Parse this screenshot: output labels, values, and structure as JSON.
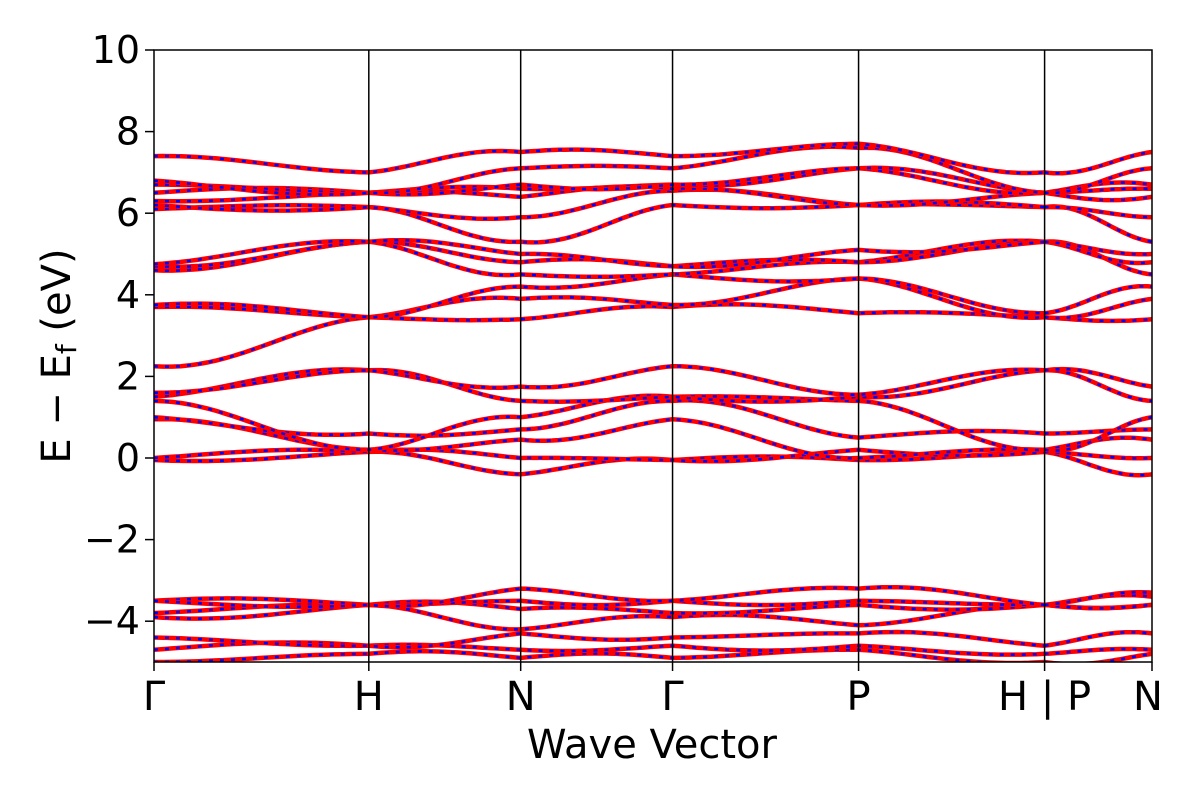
{
  "chart_data": {
    "type": "line",
    "xlabel": "Wave Vector",
    "ylabel_main": "E − E",
    "ylabel_sub": "f",
    "ylabel_unit": " (eV)",
    "ylim": [
      -5,
      10
    ],
    "yticks": [
      "−4",
      "−2",
      "0",
      "2",
      "4",
      "6",
      "8",
      "10"
    ],
    "ytick_values": [
      -4,
      -2,
      0,
      2,
      4,
      6,
      8,
      10
    ],
    "xticks": [
      "Γ",
      "H",
      "N",
      "Γ",
      "P",
      "H | P",
      "N"
    ],
    "xtick_positions": [
      0,
      1.0,
      1.707,
      2.414,
      3.28,
      4.146,
      4.646
    ],
    "segment_break_index": 5,
    "grid": false,
    "legend": "none",
    "colors": {
      "primary": "#ff0000",
      "secondary": "#0000ff",
      "axes": "#000000"
    },
    "bands_below": [
      [
        -5.0,
        -4.8,
        -4.9,
        -4.9,
        -4.7,
        -5.0,
        -4.8
      ],
      [
        -4.7,
        -4.6,
        -4.7,
        -4.6,
        -4.6,
        -4.8,
        -4.7
      ],
      [
        -4.4,
        -4.6,
        -4.3,
        -4.4,
        -4.3,
        -4.6,
        -4.3
      ],
      [
        -3.9,
        -3.6,
        -4.2,
        -3.9,
        -4.1,
        -3.6,
        -3.6
      ],
      [
        -3.8,
        -3.6,
        -3.7,
        -3.8,
        -3.6,
        -3.6,
        -3.6
      ],
      [
        -3.5,
        -3.6,
        -3.5,
        -3.5,
        -3.5,
        -3.6,
        -3.4
      ],
      [
        -3.5,
        -3.6,
        -3.2,
        -3.5,
        -3.2,
        -3.6,
        -3.3
      ]
    ],
    "bands_above": [
      [
        -0.05,
        0.15,
        -0.4,
        -0.05,
        -0.05,
        0.15,
        -0.4
      ],
      [
        0.0,
        0.15,
        0.0,
        -0.05,
        0.2,
        0.15,
        0.0
      ],
      [
        0.95,
        0.2,
        0.45,
        0.95,
        0.0,
        0.2,
        0.45
      ],
      [
        1.0,
        0.6,
        0.7,
        1.4,
        0.5,
        0.6,
        0.7
      ],
      [
        1.4,
        0.2,
        1.0,
        1.5,
        1.4,
        0.2,
        1.0
      ],
      [
        1.5,
        2.15,
        1.4,
        1.5,
        1.5,
        2.15,
        1.4
      ],
      [
        1.6,
        2.15,
        1.75,
        2.25,
        1.55,
        2.15,
        1.75
      ],
      [
        2.25,
        3.45,
        3.4,
        3.7,
        3.55,
        3.45,
        3.4
      ],
      [
        3.7,
        3.45,
        3.9,
        3.75,
        4.4,
        3.45,
        3.9
      ],
      [
        3.75,
        3.45,
        4.2,
        4.5,
        4.4,
        3.55,
        4.2
      ],
      [
        4.6,
        5.3,
        4.5,
        4.5,
        4.8,
        5.3,
        4.5
      ],
      [
        4.7,
        5.3,
        4.8,
        4.7,
        4.8,
        5.3,
        4.8
      ],
      [
        4.75,
        5.3,
        5.0,
        4.7,
        5.1,
        5.3,
        5.0
      ],
      [
        6.1,
        6.15,
        5.3,
        6.2,
        6.2,
        6.15,
        5.3
      ],
      [
        6.2,
        6.15,
        5.9,
        6.55,
        6.2,
        6.15,
        5.9
      ],
      [
        6.3,
        6.5,
        6.4,
        6.6,
        6.2,
        6.5,
        6.4
      ],
      [
        6.5,
        6.5,
        6.6,
        6.7,
        7.1,
        6.5,
        6.6
      ],
      [
        6.7,
        6.5,
        6.7,
        6.7,
        7.1,
        6.5,
        6.7
      ],
      [
        6.8,
        6.5,
        7.1,
        7.1,
        7.6,
        6.5,
        7.1
      ],
      [
        7.4,
        7.0,
        7.5,
        7.4,
        7.7,
        7.0,
        7.5
      ]
    ]
  }
}
